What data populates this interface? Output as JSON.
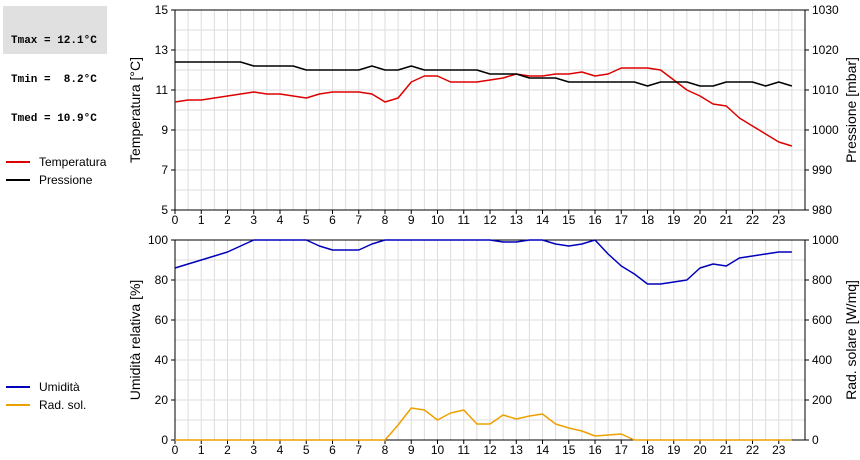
{
  "stats": {
    "tmax": "Tmax = 12.1°C",
    "tmin": "Tmin =  8.2°C",
    "tmed": "Tmed = 10.9°C"
  },
  "legend_top": [
    {
      "label": "Temperatura",
      "color": "#dd0000"
    },
    {
      "label": "Pressione",
      "color": "#000000"
    }
  ],
  "legend_bottom": [
    {
      "label": "Umidità",
      "color": "#0000bb"
    },
    {
      "label": "Rad. sol.",
      "color": "#eea000"
    }
  ],
  "chart_data": [
    {
      "type": "line",
      "xlabel": "",
      "ylabel": "Temperatura [°C]",
      "y2label": "Pressione [mbar]",
      "xlim": [
        0,
        24
      ],
      "ylim": [
        5,
        15
      ],
      "y2lim": [
        980,
        1030
      ],
      "xticks": [
        "0",
        "1",
        "2",
        "3",
        "4",
        "5",
        "6",
        "7",
        "8",
        "9",
        "10",
        "11",
        "12",
        "13",
        "14",
        "15",
        "16",
        "17",
        "18",
        "19",
        "20",
        "21",
        "22",
        "23"
      ],
      "yticks": [
        "5",
        "7",
        "9",
        "11",
        "13",
        "15"
      ],
      "y2ticks": [
        "980",
        "990",
        "1000",
        "1010",
        "1020",
        "1030"
      ],
      "grid": true,
      "series": [
        {
          "name": "Temperatura",
          "axis": "left",
          "color": "#dd0000",
          "x": [
            0,
            0.5,
            1,
            1.5,
            2,
            2.5,
            3,
            3.5,
            4,
            4.5,
            5,
            5.5,
            6,
            6.5,
            7,
            7.5,
            8,
            8.5,
            9,
            9.5,
            10,
            10.5,
            11,
            11.5,
            12,
            12.5,
            13,
            13.5,
            14,
            14.5,
            15,
            15.5,
            16,
            16.5,
            17,
            17.5,
            18,
            18.5,
            19,
            19.5,
            20,
            20.5,
            21,
            21.5,
            22,
            22.5,
            23,
            23.5
          ],
          "y": [
            10.4,
            10.5,
            10.5,
            10.6,
            10.7,
            10.8,
            10.9,
            10.8,
            10.8,
            10.7,
            10.6,
            10.8,
            10.9,
            10.9,
            10.9,
            10.8,
            10.4,
            10.6,
            11.4,
            11.7,
            11.7,
            11.4,
            11.4,
            11.4,
            11.5,
            11.6,
            11.8,
            11.7,
            11.7,
            11.8,
            11.8,
            11.9,
            11.7,
            11.8,
            12.1,
            12.1,
            12.1,
            12.0,
            11.5,
            11.0,
            10.7,
            10.3,
            10.2,
            9.6,
            9.2,
            8.8,
            8.4,
            8.2
          ]
        },
        {
          "name": "Pressione",
          "axis": "right",
          "color": "#000000",
          "x": [
            0,
            0.5,
            1,
            1.5,
            2,
            2.5,
            3,
            3.5,
            4,
            4.5,
            5,
            5.5,
            6,
            6.5,
            7,
            7.5,
            8,
            8.5,
            9,
            9.5,
            10,
            10.5,
            11,
            11.5,
            12,
            12.5,
            13,
            13.5,
            14,
            14.5,
            15,
            15.5,
            16,
            16.5,
            17,
            17.5,
            18,
            18.5,
            19,
            19.5,
            20,
            20.5,
            21,
            21.5,
            22,
            22.5,
            23,
            23.5
          ],
          "y": [
            1017,
            1017,
            1017,
            1017,
            1017,
            1017,
            1016,
            1016,
            1016,
            1016,
            1015,
            1015,
            1015,
            1015,
            1015,
            1016,
            1015,
            1015,
            1016,
            1015,
            1015,
            1015,
            1015,
            1015,
            1014,
            1014,
            1014,
            1013,
            1013,
            1013,
            1012,
            1012,
            1012,
            1012,
            1012,
            1012,
            1011,
            1012,
            1012,
            1012,
            1011,
            1011,
            1012,
            1012,
            1012,
            1011,
            1012,
            1011
          ]
        }
      ]
    },
    {
      "type": "line",
      "xlabel": "",
      "ylabel": "Umidità relativa [%]",
      "y2label": "Rad. solare [W/mq]",
      "xlim": [
        0,
        24
      ],
      "ylim": [
        0,
        100
      ],
      "y2lim": [
        0,
        1000
      ],
      "xticks": [
        "0",
        "1",
        "2",
        "3",
        "4",
        "5",
        "6",
        "7",
        "8",
        "9",
        "10",
        "11",
        "12",
        "13",
        "14",
        "15",
        "16",
        "17",
        "18",
        "19",
        "20",
        "21",
        "22",
        "23"
      ],
      "yticks": [
        "0",
        "20",
        "40",
        "60",
        "80",
        "100"
      ],
      "y2ticks": [
        "0",
        "200",
        "400",
        "600",
        "800",
        "1000"
      ],
      "grid": true,
      "series": [
        {
          "name": "Umidità",
          "axis": "left",
          "color": "#0000bb",
          "x": [
            0,
            0.5,
            1,
            1.5,
            2,
            2.5,
            3,
            3.5,
            4,
            4.5,
            5,
            5.5,
            6,
            6.5,
            7,
            7.5,
            8,
            8.5,
            9,
            9.5,
            10,
            10.5,
            11,
            11.5,
            12,
            12.5,
            13,
            13.5,
            14,
            14.5,
            15,
            15.5,
            16,
            16.5,
            17,
            17.5,
            18,
            18.5,
            19,
            19.5,
            20,
            20.5,
            21,
            21.5,
            22,
            22.5,
            23,
            23.5
          ],
          "y": [
            86,
            88,
            90,
            92,
            94,
            97,
            100,
            100,
            100,
            100,
            100,
            97,
            95,
            95,
            95,
            98,
            100,
            100,
            100,
            100,
            100,
            100,
            100,
            100,
            100,
            99,
            99,
            100,
            100,
            98,
            97,
            98,
            100,
            93,
            87,
            83,
            78,
            78,
            79,
            80,
            86,
            88,
            87,
            91,
            92,
            93,
            94,
            94
          ]
        },
        {
          "name": "Rad. sol.",
          "axis": "right",
          "color": "#eea000",
          "x": [
            0,
            0.5,
            1,
            1.5,
            2,
            2.5,
            3,
            3.5,
            4,
            4.5,
            5,
            5.5,
            6,
            6.5,
            7,
            7.5,
            8,
            8.5,
            9,
            9.5,
            10,
            10.5,
            11,
            11.5,
            12,
            12.5,
            13,
            13.5,
            14,
            14.5,
            15,
            15.5,
            16,
            16.5,
            17,
            17.5,
            18,
            18.5,
            19,
            19.5,
            20,
            20.5,
            21,
            21.5,
            22,
            22.5,
            23,
            23.5
          ],
          "y": [
            0,
            0,
            0,
            0,
            0,
            0,
            0,
            0,
            0,
            0,
            0,
            0,
            0,
            0,
            0,
            0,
            0,
            75,
            160,
            150,
            100,
            135,
            150,
            80,
            80,
            125,
            105,
            120,
            130,
            80,
            60,
            45,
            20,
            25,
            30,
            0,
            0,
            0,
            0,
            0,
            0,
            0,
            0,
            0,
            0,
            0,
            0,
            0
          ]
        }
      ]
    }
  ]
}
